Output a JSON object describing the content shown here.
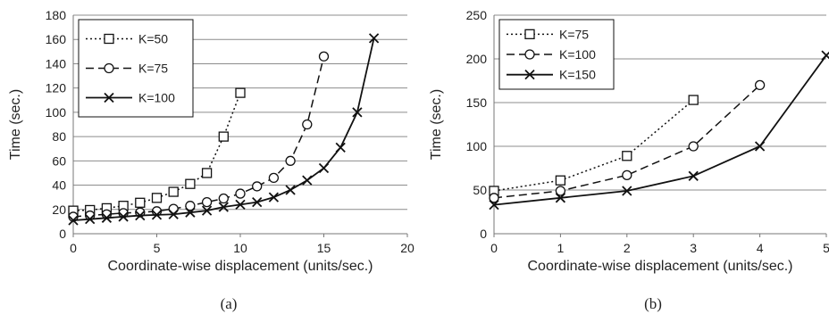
{
  "figure": {
    "panels": [
      "(a)",
      "(b)"
    ]
  },
  "chart_data": [
    {
      "type": "line",
      "panel_label": "(a)",
      "xlabel": "Coordinate-wise displacement (units/sec.)",
      "ylabel": "Time (sec.)",
      "xlim": [
        0,
        20
      ],
      "ylim": [
        0,
        180
      ],
      "xticks": [
        0,
        5,
        10,
        15,
        20
      ],
      "yticks": [
        0,
        20,
        40,
        60,
        80,
        100,
        120,
        140,
        160,
        180
      ],
      "grid": "horizontal",
      "legend_position": "top-left",
      "series": [
        {
          "name": "K=50",
          "line_style": "dotted",
          "marker": "square",
          "x": [
            0,
            1,
            2,
            3,
            4,
            5,
            6,
            7,
            8,
            9,
            10
          ],
          "y": [
            19,
            19.5,
            21,
            23,
            25.5,
            29.5,
            34.5,
            41,
            50,
            80,
            116
          ]
        },
        {
          "name": "K=75",
          "line_style": "dashed",
          "marker": "circle",
          "x": [
            0,
            1,
            2,
            3,
            4,
            5,
            6,
            7,
            8,
            9,
            10,
            11,
            12,
            13,
            14,
            15
          ],
          "y": [
            14,
            15,
            16,
            17,
            17.5,
            18.5,
            20.5,
            23,
            26,
            29,
            33,
            39,
            46,
            60,
            90,
            146
          ]
        },
        {
          "name": "K=100",
          "line_style": "solid",
          "marker": "x",
          "x": [
            0,
            1,
            2,
            3,
            4,
            5,
            6,
            7,
            8,
            9,
            10,
            11,
            12,
            13,
            14,
            15,
            16,
            17,
            18
          ],
          "y": [
            11,
            12,
            13,
            14,
            15,
            15.5,
            16,
            17.5,
            19,
            22,
            24,
            26,
            30,
            36,
            44,
            54,
            71,
            100,
            161
          ]
        }
      ]
    },
    {
      "type": "line",
      "panel_label": "(b)",
      "xlabel": "Coordinate-wise displacement (units/sec.)",
      "ylabel": "Time (sec.)",
      "xlim": [
        0,
        5
      ],
      "ylim": [
        0,
        250
      ],
      "xticks": [
        0,
        1,
        2,
        3,
        4,
        5
      ],
      "yticks": [
        0,
        50,
        100,
        150,
        200,
        250
      ],
      "grid": "horizontal",
      "legend_position": "top-left",
      "series": [
        {
          "name": "K=75",
          "line_style": "dotted",
          "marker": "square",
          "x": [
            0,
            1,
            2,
            3
          ],
          "y": [
            49,
            61,
            89,
            153
          ]
        },
        {
          "name": "K=100",
          "line_style": "dashed",
          "marker": "circle",
          "x": [
            0,
            1,
            2,
            3,
            4
          ],
          "y": [
            41,
            49,
            67,
            100,
            170
          ]
        },
        {
          "name": "K=150",
          "line_style": "solid",
          "marker": "x",
          "x": [
            0,
            1,
            2,
            3,
            4,
            5
          ],
          "y": [
            33,
            41,
            49,
            66,
            100,
            204
          ]
        }
      ]
    }
  ]
}
